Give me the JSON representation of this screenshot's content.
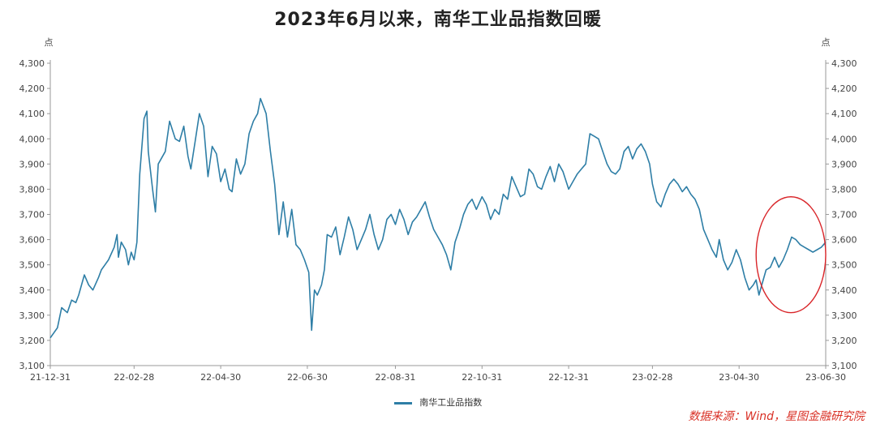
{
  "title": "2023年6月以来，南华工业品指数回暖",
  "source": "数据来源：Wind，星图金融研究院",
  "colors": {
    "line": "#2e7ea6",
    "circle": "#d9262a",
    "axis": "#999999",
    "source": "#d93025"
  },
  "chart_data": {
    "type": "line",
    "title": "2023年6月以来，南华工业品指数回暖",
    "ylabel": "点",
    "y2label": "点",
    "ylim": [
      3100,
      4300
    ],
    "yticks": [
      "3,100",
      "3,200",
      "3,300",
      "3,400",
      "3,500",
      "3,600",
      "3,700",
      "3,800",
      "3,900",
      "4,000",
      "4,100",
      "4,200",
      "4,300"
    ],
    "x_range": [
      "2021-12-31",
      "2023-06-30"
    ],
    "xticks": [
      "21-12-31",
      "22-02-28",
      "22-04-30",
      "22-06-30",
      "22-08-31",
      "22-10-31",
      "22-12-31",
      "23-02-28",
      "23-04-30",
      "23-06-30"
    ],
    "grid": false,
    "legend_position": "bottom-center",
    "series": [
      {
        "name": "南华工业品指数",
        "points": [
          [
            "2021-12-31",
            3210
          ],
          [
            "2022-01-05",
            3250
          ],
          [
            "2022-01-08",
            3330
          ],
          [
            "2022-01-12",
            3310
          ],
          [
            "2022-01-15",
            3360
          ],
          [
            "2022-01-18",
            3350
          ],
          [
            "2022-01-20",
            3380
          ],
          [
            "2022-01-24",
            3460
          ],
          [
            "2022-01-27",
            3420
          ],
          [
            "2022-01-30",
            3400
          ],
          [
            "2022-02-03",
            3450
          ],
          [
            "2022-02-05",
            3480
          ],
          [
            "2022-02-10",
            3520
          ],
          [
            "2022-02-14",
            3570
          ],
          [
            "2022-02-16",
            3620
          ],
          [
            "2022-02-17",
            3530
          ],
          [
            "2022-02-19",
            3590
          ],
          [
            "2022-02-22",
            3560
          ],
          [
            "2022-02-24",
            3500
          ],
          [
            "2022-02-26",
            3550
          ],
          [
            "2022-02-28",
            3520
          ],
          [
            "2022-03-02",
            3590
          ],
          [
            "2022-03-04",
            3860
          ],
          [
            "2022-03-07",
            4080
          ],
          [
            "2022-03-09",
            4110
          ],
          [
            "2022-03-10",
            3950
          ],
          [
            "2022-03-13",
            3800
          ],
          [
            "2022-03-15",
            3710
          ],
          [
            "2022-03-17",
            3900
          ],
          [
            "2022-03-22",
            3950
          ],
          [
            "2022-03-25",
            4070
          ],
          [
            "2022-03-29",
            4000
          ],
          [
            "2022-04-01",
            3990
          ],
          [
            "2022-04-04",
            4050
          ],
          [
            "2022-04-07",
            3930
          ],
          [
            "2022-04-09",
            3880
          ],
          [
            "2022-04-12",
            3990
          ],
          [
            "2022-04-15",
            4100
          ],
          [
            "2022-04-18",
            4050
          ],
          [
            "2022-04-21",
            3850
          ],
          [
            "2022-04-24",
            3970
          ],
          [
            "2022-04-27",
            3940
          ],
          [
            "2022-04-30",
            3830
          ],
          [
            "2022-05-03",
            3880
          ],
          [
            "2022-05-06",
            3800
          ],
          [
            "2022-05-08",
            3790
          ],
          [
            "2022-05-11",
            3920
          ],
          [
            "2022-05-14",
            3860
          ],
          [
            "2022-05-17",
            3900
          ],
          [
            "2022-05-20",
            4020
          ],
          [
            "2022-05-23",
            4070
          ],
          [
            "2022-05-26",
            4100
          ],
          [
            "2022-05-28",
            4160
          ],
          [
            "2022-06-01",
            4100
          ],
          [
            "2022-06-04",
            3950
          ],
          [
            "2022-06-07",
            3820
          ],
          [
            "2022-06-10",
            3620
          ],
          [
            "2022-06-13",
            3750
          ],
          [
            "2022-06-16",
            3610
          ],
          [
            "2022-06-19",
            3720
          ],
          [
            "2022-06-22",
            3580
          ],
          [
            "2022-06-25",
            3560
          ],
          [
            "2022-06-28",
            3520
          ],
          [
            "2022-07-01",
            3470
          ],
          [
            "2022-07-03",
            3240
          ],
          [
            "2022-07-05",
            3400
          ],
          [
            "2022-07-07",
            3380
          ],
          [
            "2022-07-10",
            3420
          ],
          [
            "2022-07-12",
            3480
          ],
          [
            "2022-07-14",
            3620
          ],
          [
            "2022-07-17",
            3610
          ],
          [
            "2022-07-20",
            3650
          ],
          [
            "2022-07-23",
            3540
          ],
          [
            "2022-07-26",
            3610
          ],
          [
            "2022-07-29",
            3690
          ],
          [
            "2022-08-01",
            3640
          ],
          [
            "2022-08-04",
            3560
          ],
          [
            "2022-08-07",
            3600
          ],
          [
            "2022-08-10",
            3640
          ],
          [
            "2022-08-13",
            3700
          ],
          [
            "2022-08-16",
            3620
          ],
          [
            "2022-08-19",
            3560
          ],
          [
            "2022-08-22",
            3600
          ],
          [
            "2022-08-25",
            3680
          ],
          [
            "2022-08-28",
            3700
          ],
          [
            "2022-08-31",
            3660
          ],
          [
            "2022-09-03",
            3720
          ],
          [
            "2022-09-06",
            3680
          ],
          [
            "2022-09-09",
            3620
          ],
          [
            "2022-09-12",
            3670
          ],
          [
            "2022-09-15",
            3690
          ],
          [
            "2022-09-18",
            3720
          ],
          [
            "2022-09-21",
            3750
          ],
          [
            "2022-09-24",
            3690
          ],
          [
            "2022-09-27",
            3640
          ],
          [
            "2022-09-30",
            3610
          ],
          [
            "2022-10-03",
            3580
          ],
          [
            "2022-10-06",
            3540
          ],
          [
            "2022-10-09",
            3480
          ],
          [
            "2022-10-12",
            3590
          ],
          [
            "2022-10-15",
            3640
          ],
          [
            "2022-10-18",
            3700
          ],
          [
            "2022-10-21",
            3740
          ],
          [
            "2022-10-24",
            3760
          ],
          [
            "2022-10-27",
            3720
          ],
          [
            "2022-10-31",
            3770
          ],
          [
            "2022-11-03",
            3740
          ],
          [
            "2022-11-06",
            3680
          ],
          [
            "2022-11-09",
            3720
          ],
          [
            "2022-11-12",
            3700
          ],
          [
            "2022-11-15",
            3780
          ],
          [
            "2022-11-18",
            3760
          ],
          [
            "2022-11-21",
            3850
          ],
          [
            "2022-11-24",
            3810
          ],
          [
            "2022-11-27",
            3770
          ],
          [
            "2022-11-30",
            3780
          ],
          [
            "2022-12-03",
            3880
          ],
          [
            "2022-12-06",
            3860
          ],
          [
            "2022-12-09",
            3810
          ],
          [
            "2022-12-12",
            3800
          ],
          [
            "2022-12-15",
            3850
          ],
          [
            "2022-12-18",
            3890
          ],
          [
            "2022-12-21",
            3830
          ],
          [
            "2022-12-24",
            3900
          ],
          [
            "2022-12-27",
            3870
          ],
          [
            "2022-12-31",
            3800
          ],
          [
            "2023-01-03",
            3830
          ],
          [
            "2023-01-06",
            3860
          ],
          [
            "2023-01-09",
            3880
          ],
          [
            "2023-01-12",
            3900
          ],
          [
            "2023-01-15",
            4020
          ],
          [
            "2023-01-18",
            4010
          ],
          [
            "2023-01-21",
            4000
          ],
          [
            "2023-01-24",
            3950
          ],
          [
            "2023-01-27",
            3900
          ],
          [
            "2023-01-30",
            3870
          ],
          [
            "2023-02-02",
            3860
          ],
          [
            "2023-02-05",
            3880
          ],
          [
            "2023-02-08",
            3950
          ],
          [
            "2023-02-11",
            3970
          ],
          [
            "2023-02-14",
            3920
          ],
          [
            "2023-02-17",
            3960
          ],
          [
            "2023-02-20",
            3980
          ],
          [
            "2023-02-23",
            3950
          ],
          [
            "2023-02-26",
            3900
          ],
          [
            "2023-02-28",
            3820
          ],
          [
            "2023-03-03",
            3750
          ],
          [
            "2023-03-06",
            3730
          ],
          [
            "2023-03-09",
            3780
          ],
          [
            "2023-03-12",
            3820
          ],
          [
            "2023-03-15",
            3840
          ],
          [
            "2023-03-18",
            3820
          ],
          [
            "2023-03-21",
            3790
          ],
          [
            "2023-03-24",
            3810
          ],
          [
            "2023-03-27",
            3780
          ],
          [
            "2023-03-30",
            3760
          ],
          [
            "2023-04-02",
            3720
          ],
          [
            "2023-04-05",
            3640
          ],
          [
            "2023-04-08",
            3600
          ],
          [
            "2023-04-11",
            3560
          ],
          [
            "2023-04-14",
            3530
          ],
          [
            "2023-04-16",
            3600
          ],
          [
            "2023-04-19",
            3520
          ],
          [
            "2023-04-22",
            3480
          ],
          [
            "2023-04-25",
            3510
          ],
          [
            "2023-04-28",
            3560
          ],
          [
            "2023-05-01",
            3520
          ],
          [
            "2023-05-04",
            3450
          ],
          [
            "2023-05-07",
            3400
          ],
          [
            "2023-05-10",
            3420
          ],
          [
            "2023-05-12",
            3440
          ],
          [
            "2023-05-14",
            3380
          ],
          [
            "2023-05-16",
            3420
          ],
          [
            "2023-05-19",
            3480
          ],
          [
            "2023-05-22",
            3490
          ],
          [
            "2023-05-25",
            3530
          ],
          [
            "2023-05-28",
            3490
          ],
          [
            "2023-05-31",
            3520
          ],
          [
            "2023-06-03",
            3560
          ],
          [
            "2023-06-06",
            3610
          ],
          [
            "2023-06-09",
            3600
          ],
          [
            "2023-06-12",
            3580
          ],
          [
            "2023-06-15",
            3570
          ],
          [
            "2023-06-18",
            3560
          ],
          [
            "2023-06-21",
            3550
          ],
          [
            "2023-06-24",
            3560
          ],
          [
            "2023-06-27",
            3570
          ],
          [
            "2023-06-30",
            3590
          ]
        ]
      }
    ],
    "annotations": [
      {
        "type": "ellipse",
        "from": "2023-05-12",
        "to": "2023-06-30",
        "y_range": [
          3310,
          3770
        ]
      }
    ]
  }
}
